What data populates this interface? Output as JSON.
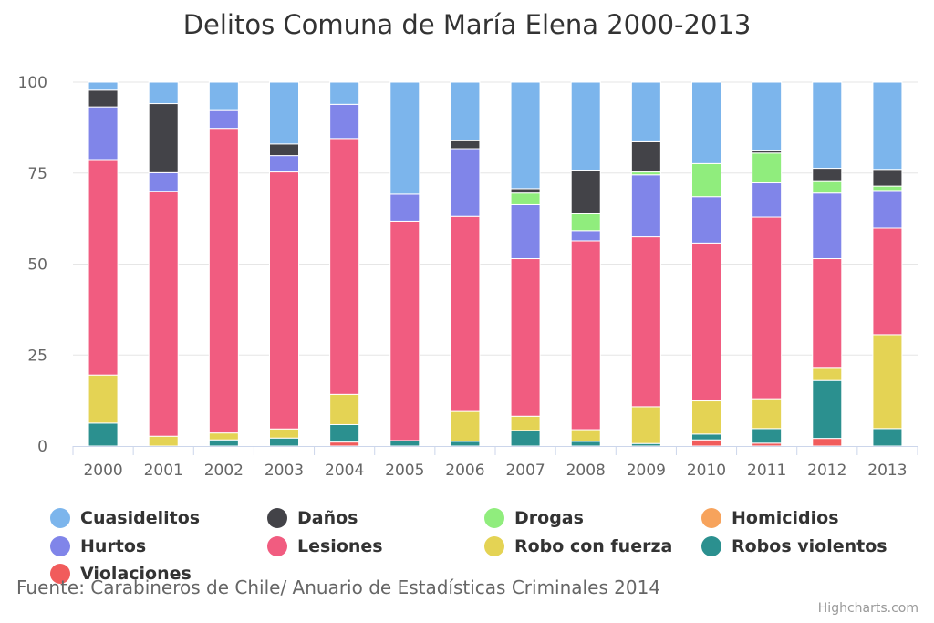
{
  "title": "Delitos Comuna de María Elena 2000-2013",
  "source": "Fuente: Carabineros de Chile/ Anuario de Estadísticas Criminales 2014",
  "credits": "Highcharts.com",
  "chart_data": {
    "type": "bar",
    "stacking": "percent",
    "title": "Delitos Comuna de María Elena 2000-2013",
    "xlabel": "",
    "ylabel": "",
    "ylim": [
      0,
      100
    ],
    "yticks": [
      "0",
      "25",
      "50",
      "75",
      "100"
    ],
    "grid": true,
    "legend_position": "bottom",
    "categories": [
      "2000",
      "2001",
      "2002",
      "2003",
      "2004",
      "2005",
      "2006",
      "2007",
      "2008",
      "2009",
      "2010",
      "2011",
      "2012",
      "2013"
    ],
    "series": [
      {
        "name": "Violaciones",
        "color": "#f15c5c",
        "values": [
          0,
          0,
          0,
          0,
          1.1,
          0,
          0,
          0,
          0,
          0,
          1.7,
          0.8,
          2.1,
          0
        ]
      },
      {
        "name": "Robos violentos",
        "color": "#2b908f",
        "values": [
          6.3,
          0,
          1.7,
          2.2,
          4.8,
          1.5,
          1.3,
          4.3,
          1.3,
          0.7,
          1.6,
          4.0,
          15.9,
          4.8
        ]
      },
      {
        "name": "Robo con fuerza",
        "color": "#e4d354",
        "values": [
          13.2,
          2.7,
          1.9,
          2.5,
          8.3,
          0,
          8.2,
          3.9,
          3.2,
          10.1,
          9.1,
          8.2,
          3.6,
          25.8
        ]
      },
      {
        "name": "Lesiones",
        "color": "#f15c80",
        "values": [
          59.2,
          67.3,
          83.7,
          70.6,
          70.3,
          60.3,
          53.6,
          43.3,
          51.9,
          46.7,
          43.4,
          49.9,
          29.9,
          29.3
        ]
      },
      {
        "name": "Hurtos",
        "color": "#8085e9",
        "values": [
          14.5,
          5.1,
          4.9,
          4.5,
          9.4,
          7.4,
          18.6,
          14.8,
          2.8,
          17.0,
          12.7,
          9.4,
          18.0,
          10.3
        ]
      },
      {
        "name": "Homicidios",
        "color": "#f7a35c",
        "values": [
          0,
          0,
          0,
          0,
          0,
          0,
          0,
          0,
          0,
          0,
          0,
          0,
          0,
          0
        ]
      },
      {
        "name": "Drogas",
        "color": "#90ed7d",
        "values": [
          0,
          0,
          0,
          0,
          0,
          0,
          0,
          3.2,
          4.6,
          0.8,
          9.1,
          8.2,
          3.4,
          1.2
        ]
      },
      {
        "name": "Daños",
        "color": "#434348",
        "values": [
          4.6,
          19.0,
          0,
          3.2,
          0,
          0,
          2.2,
          1.2,
          12.0,
          8.3,
          0,
          0.8,
          3.4,
          4.6
        ]
      },
      {
        "name": "Cuasidelitos",
        "color": "#7cb5ec",
        "values": [
          2.2,
          5.9,
          7.8,
          17.0,
          6.1,
          30.8,
          16.1,
          29.3,
          24.2,
          16.4,
          22.4,
          18.7,
          23.7,
          24.0
        ]
      }
    ]
  },
  "legend": [
    {
      "name": "Cuasidelitos",
      "color": "#7cb5ec"
    },
    {
      "name": "Daños",
      "color": "#434348"
    },
    {
      "name": "Drogas",
      "color": "#90ed7d"
    },
    {
      "name": "Homicidios",
      "color": "#f7a35c"
    },
    {
      "name": "Hurtos",
      "color": "#8085e9"
    },
    {
      "name": "Lesiones",
      "color": "#f15c80"
    },
    {
      "name": "Robo con fuerza",
      "color": "#e4d354"
    },
    {
      "name": "Robos violentos",
      "color": "#2b908f"
    },
    {
      "name": "Violaciones",
      "color": "#f15c5c"
    }
  ]
}
